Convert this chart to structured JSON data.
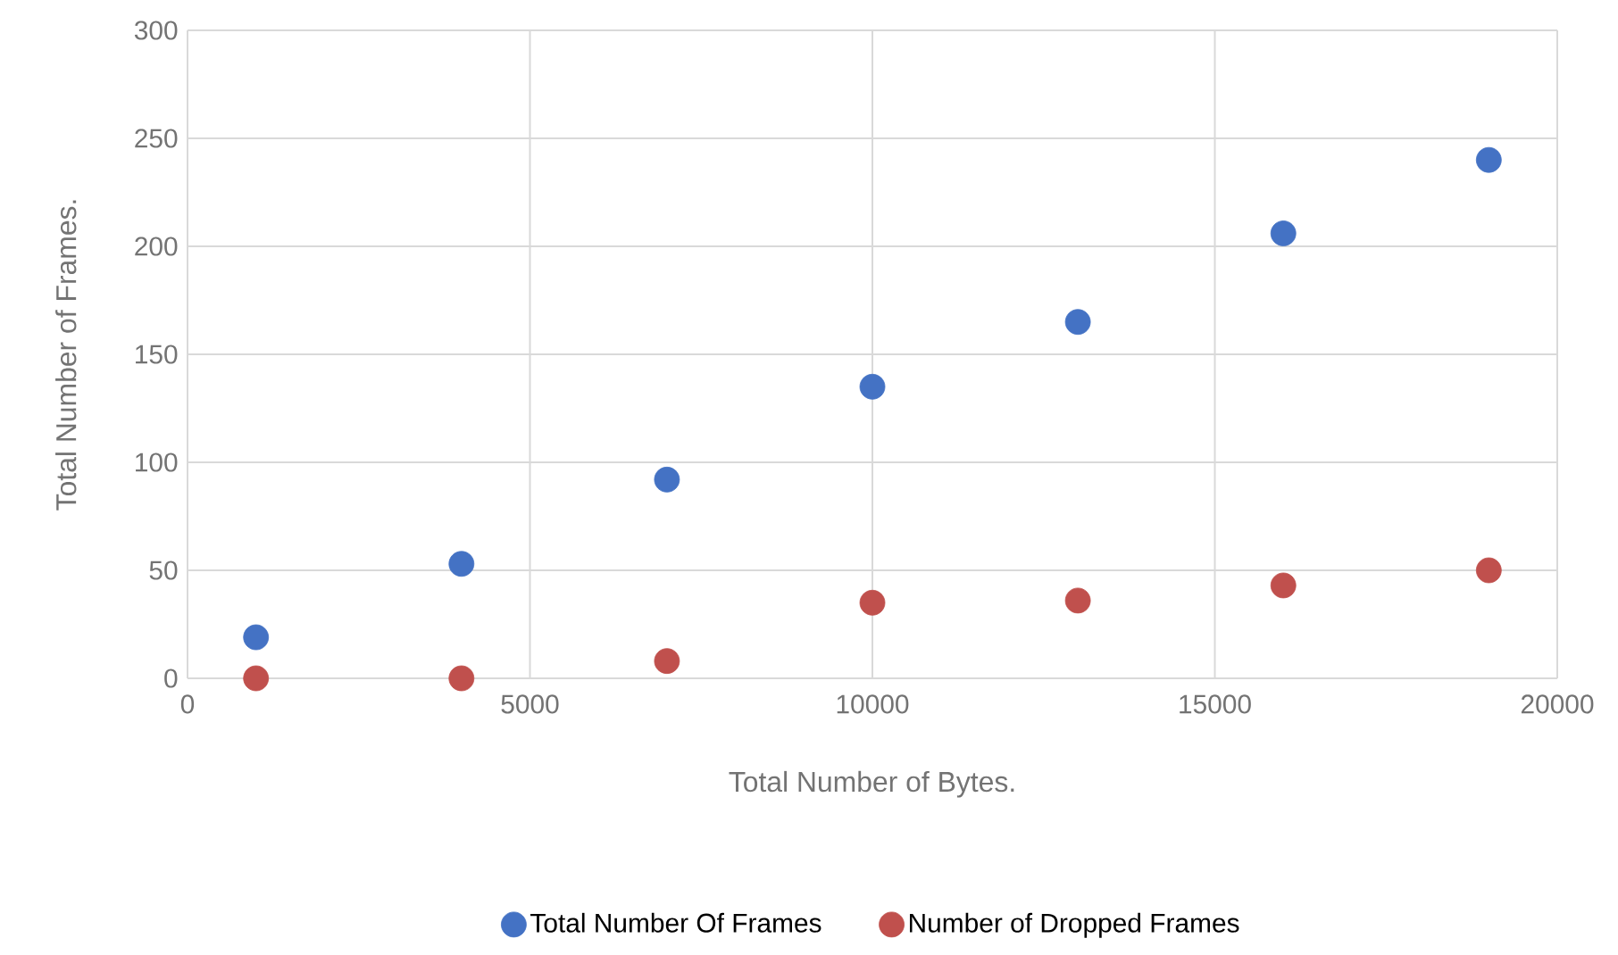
{
  "chart_data": {
    "type": "scatter",
    "xlabel": "Total Number of Bytes.",
    "ylabel": "Total Number of Frames.",
    "x": [
      1000,
      4000,
      7000,
      10000,
      13000,
      16000,
      19000
    ],
    "series": [
      {
        "name": "Total Number Of Frames",
        "color": "#4472c4",
        "values": [
          19,
          53,
          92,
          135,
          165,
          206,
          240
        ]
      },
      {
        "name": "Number of Dropped Frames",
        "color": "#c0504d",
        "values": [
          0,
          0,
          8,
          35,
          36,
          43,
          50
        ]
      }
    ],
    "xlim": [
      0,
      20000
    ],
    "ylim": [
      0,
      300
    ],
    "xticks": [
      0,
      5000,
      10000,
      15000,
      20000
    ],
    "yticks": [
      0,
      50,
      100,
      150,
      200,
      250,
      300
    ],
    "grid": true,
    "legend": "bottom",
    "marker": "circle"
  }
}
